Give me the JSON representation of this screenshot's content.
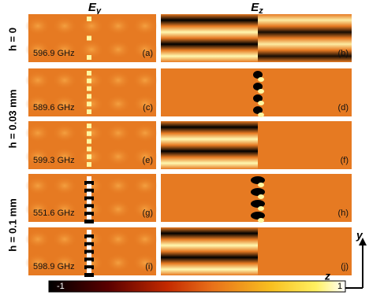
{
  "columns": [
    {
      "label": "E",
      "subscript": "y"
    },
    {
      "label": "E",
      "subscript": "z"
    }
  ],
  "rows": [
    {
      "label": "h = 0"
    },
    {
      "label": "h = 0.03 mm"
    },
    {
      "label": "h = 0.1 mm"
    }
  ],
  "panels": [
    {
      "frequency": "596.9 GHz",
      "label_left": "(a)",
      "label_right": "(b)"
    },
    {
      "frequency": "589.6 GHz",
      "label_left": "(c)",
      "label_right": "(d)"
    },
    {
      "frequency": "599.3 GHz",
      "label_left": "(e)",
      "label_right": "(f)"
    },
    {
      "frequency": "551.6 GHz",
      "label_left": "(g)",
      "label_right": "(h)"
    },
    {
      "frequency": "598.9 GHz",
      "label_left": "(i)",
      "label_right": "(j)"
    }
  ],
  "colorbar": {
    "min_label": "-1",
    "max_label": "1"
  },
  "axes": {
    "vertical": "y",
    "horizontal": "z"
  }
}
